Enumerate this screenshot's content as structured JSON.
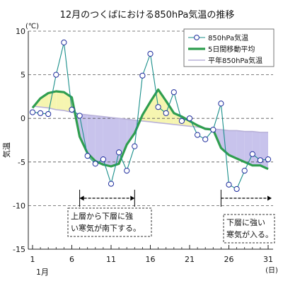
{
  "chart_data": {
    "type": "line",
    "title": "12月のつくばにおける850hPa気温の推移",
    "ylabel": "気温",
    "yunit": "(℃)",
    "ylim": [
      -15,
      10
    ],
    "yticks": [
      10,
      5,
      0,
      -5,
      -10,
      -15
    ],
    "xlim": [
      1,
      31
    ],
    "xticks": [
      1,
      6,
      11,
      16,
      21,
      26,
      31
    ],
    "xlabel_left": "1月",
    "xlabel_right": "(日)",
    "grid": "horizontal dashed",
    "legend_position": "top-right",
    "colors": {
      "obs": "#1a8f8a",
      "ma": "#2f9e4f",
      "normal": "#b9b2d9",
      "fill_below": "#c8c3ec",
      "fill_above": "#f6f5b0",
      "marker_edge": "#1c2a9c"
    },
    "series": [
      {
        "name": "850hPa気温",
        "x": [
          1,
          2,
          3,
          4,
          5,
          6,
          7,
          8,
          9,
          10,
          11,
          12,
          13,
          14,
          15,
          16,
          17,
          18,
          19,
          20,
          21,
          22,
          23,
          24,
          25,
          26,
          27,
          28,
          29,
          30,
          31
        ],
        "values": [
          0.7,
          0.6,
          0.5,
          5.0,
          8.7,
          1.0,
          0.3,
          -4.3,
          -5.2,
          -4.7,
          -7.5,
          -3.9,
          -6.0,
          -3.2,
          4.9,
          7.4,
          1.3,
          0.6,
          3.0,
          -0.3,
          0.0,
          -1.9,
          -2.4,
          -1.3,
          1.7,
          -7.6,
          -8.1,
          -6.0,
          -4.1,
          -4.8,
          -4.7
        ]
      },
      {
        "name": "5日間移動平均",
        "x": [
          1,
          2,
          3,
          4,
          5,
          6,
          7,
          8,
          9,
          10,
          11,
          12,
          13,
          14,
          15,
          16,
          17,
          18,
          19,
          20,
          21,
          22,
          23,
          24,
          25,
          26,
          27,
          28,
          29,
          30,
          31
        ],
        "values": [
          1.2,
          2.3,
          2.9,
          3.1,
          3.0,
          2.4,
          -2.1,
          -4.0,
          -4.9,
          -5.3,
          -5.5,
          -5.2,
          -3.0,
          -1.7,
          0.4,
          1.9,
          3.3,
          2.0,
          0.6,
          0.2,
          -0.3,
          -0.8,
          -1.2,
          -1.3,
          -3.4,
          -4.2,
          -4.6,
          -5.0,
          -5.4,
          -5.4,
          -5.8
        ]
      },
      {
        "name": "平年850hPa気温",
        "x": [
          1,
          2,
          3,
          4,
          5,
          6,
          7,
          8,
          9,
          10,
          11,
          12,
          13,
          14,
          15,
          16,
          17,
          18,
          19,
          20,
          21,
          22,
          23,
          24,
          25,
          26,
          27,
          28,
          29,
          30,
          31
        ],
        "values": [
          1.4,
          1.3,
          1.2,
          1.0,
          0.9,
          0.7,
          0.5,
          0.4,
          0.3,
          0.2,
          0.1,
          0.0,
          -0.1,
          -0.2,
          -0.3,
          -0.4,
          -0.5,
          -0.6,
          -0.7,
          -0.8,
          -0.9,
          -1.0,
          -1.1,
          -1.2,
          -1.3,
          -1.4,
          -1.4,
          -1.5,
          -1.5,
          -1.6,
          -1.6
        ]
      }
    ],
    "annotations": [
      {
        "text_lines": [
          "上層から下層に強",
          "い寒気が南下する。"
        ],
        "span": [
          7,
          14
        ]
      },
      {
        "text_lines": [
          "下層に強い",
          "寒気が入る。"
        ],
        "span": [
          25,
          31
        ]
      }
    ]
  }
}
